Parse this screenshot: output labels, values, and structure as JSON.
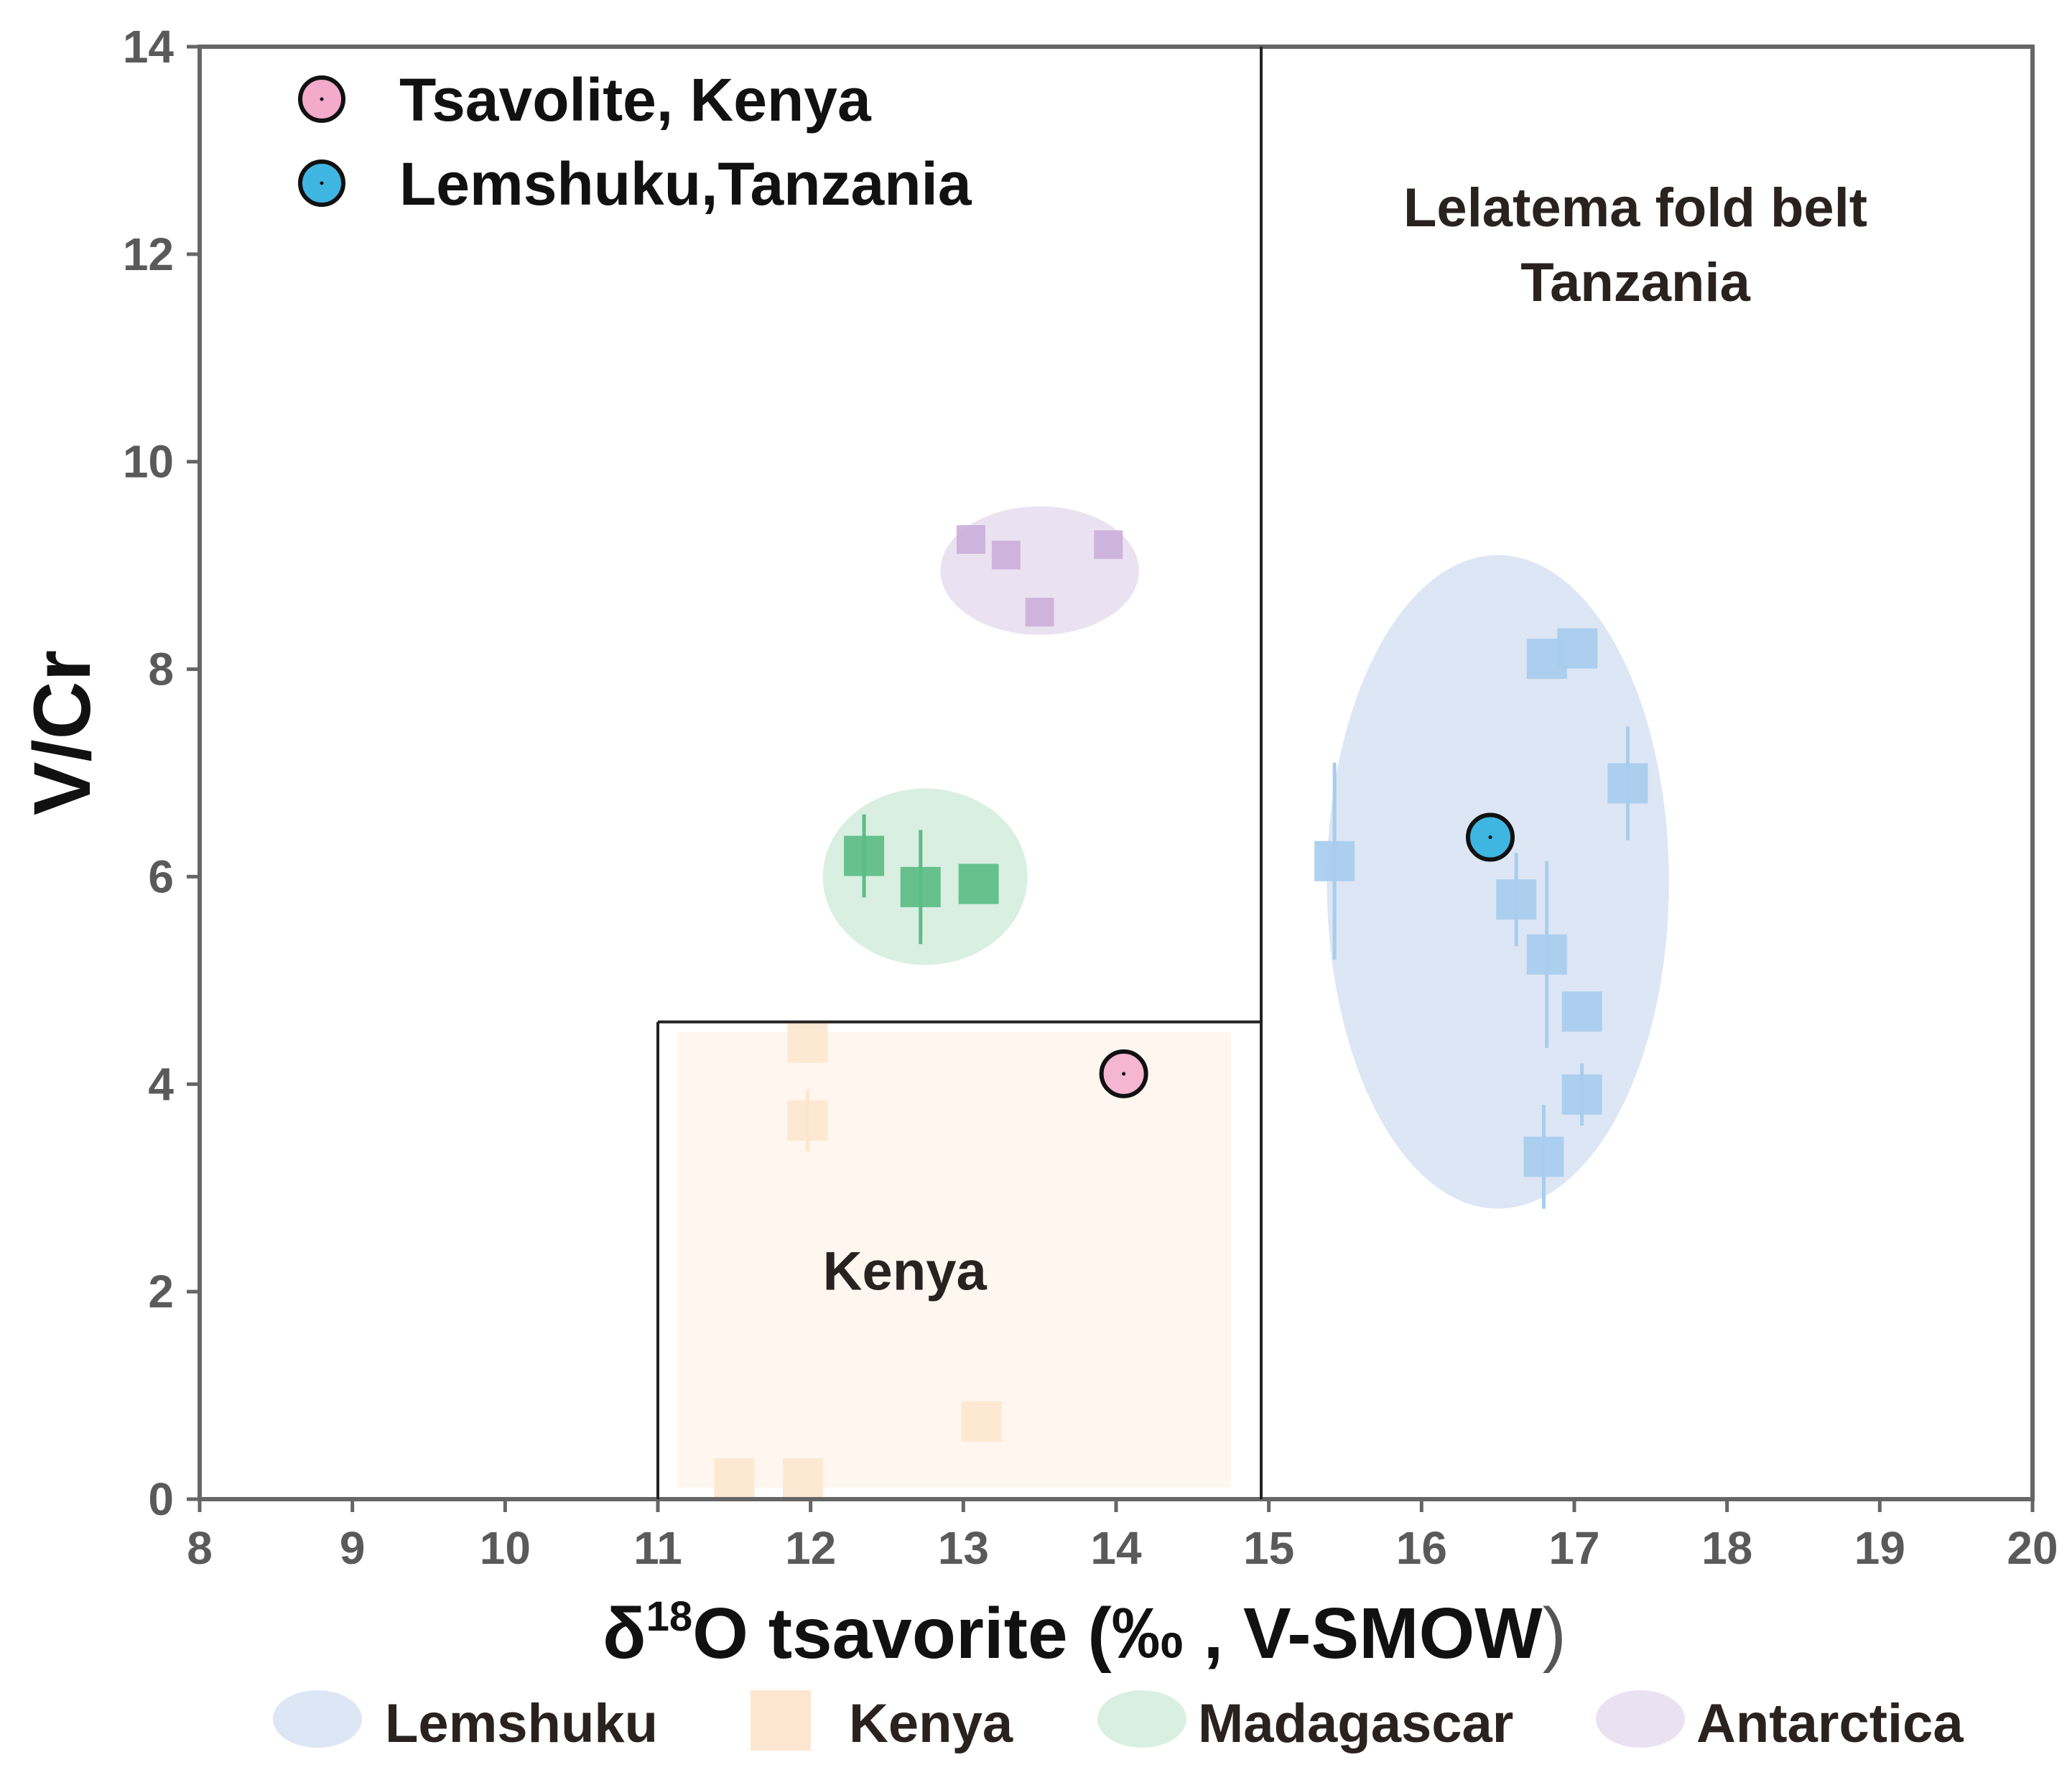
{
  "chart_data": {
    "type": "scatter",
    "xlabel": {
      "delta": "δ",
      "sup": "18",
      "rest": "O tsavorite (‰ , V-SMOW",
      "paren": ")"
    },
    "ylabel": "V/Cr",
    "xlim": [
      8,
      20
    ],
    "ylim": [
      0,
      14
    ],
    "xticks": [
      "8",
      "9",
      "10",
      "11",
      "12",
      "13",
      "14",
      "15",
      "16",
      "17",
      "18",
      "19",
      "20"
    ],
    "yticks": [
      "0",
      "2",
      "4",
      "6",
      "8",
      "10",
      "12",
      "14"
    ],
    "colors": {
      "lemshuku_fill": "#dde6f5",
      "lemshuku_point": "#a8cdee",
      "kenya_fill": "#fff7ef",
      "kenya_point": "#fde6cf",
      "madagascar_fill": "#d9efe2",
      "madagascar_point": "#5cbd86",
      "antarctica_fill": "#ebe2f1",
      "antarctica_point": "#cbb0db",
      "tsavolite": "#f3aacb",
      "lemshuku_highlight": "#3fb6e2"
    },
    "regions": [
      {
        "name": "Kenya box",
        "x": [
          11,
          14.95
        ],
        "y": [
          0,
          4.6
        ],
        "label": "Kenya",
        "label_pos": [
          12.08,
          2.2
        ]
      },
      {
        "name": "Lelatema divider",
        "x": 14.95,
        "label_lines": [
          "Lelatema fold belt",
          "Tanzania"
        ],
        "label_pos": [
          17.4,
          12.45
        ]
      }
    ],
    "groups": [
      {
        "name": "Antarctica",
        "ellipse": {
          "cx": 13.5,
          "cy": 8.95,
          "rx": 0.65,
          "ry": 0.62
        },
        "points": [
          {
            "x": 13.05,
            "y": 9.25
          },
          {
            "x": 13.28,
            "y": 9.1
          },
          {
            "x": 13.5,
            "y": 8.55
          },
          {
            "x": 13.95,
            "y": 9.2
          }
        ]
      },
      {
        "name": "Madagascar",
        "ellipse": {
          "cx": 12.75,
          "cy": 6.0,
          "rx": 0.67,
          "ry": 0.85
        },
        "points": [
          {
            "x": 12.35,
            "y": 6.2,
            "yerr": 0.4
          },
          {
            "x": 12.72,
            "y": 5.9,
            "yerr": 0.55
          },
          {
            "x": 13.1,
            "y": 5.93
          }
        ]
      },
      {
        "name": "Kenya",
        "points": [
          {
            "x": 11.5,
            "y": 0.2
          },
          {
            "x": 11.95,
            "y": 0.2
          },
          {
            "x": 11.98,
            "y": 4.4
          },
          {
            "x": 11.98,
            "y": 3.65,
            "yerr": 0.3
          },
          {
            "x": 13.12,
            "y": 0.75
          }
        ]
      },
      {
        "name": "Lemshuku",
        "ellipse": {
          "cx": 16.5,
          "cy": 5.95,
          "rx": 1.12,
          "ry": 3.15
        },
        "points": [
          {
            "x": 15.43,
            "y": 6.15,
            "yerr": 0.95
          },
          {
            "x": 16.62,
            "y": 5.78,
            "yerr": 0.45
          },
          {
            "x": 16.82,
            "y": 8.1
          },
          {
            "x": 17.02,
            "y": 8.2
          },
          {
            "x": 17.35,
            "y": 6.9,
            "yerr": 0.55
          },
          {
            "x": 16.82,
            "y": 5.25,
            "yerr": 0.9
          },
          {
            "x": 17.05,
            "y": 4.7
          },
          {
            "x": 17.05,
            "y": 3.9,
            "yerr": 0.3
          },
          {
            "x": 16.8,
            "y": 3.3,
            "yerr": 0.5
          }
        ]
      }
    ],
    "highlights": [
      {
        "name": "Tsavolite, Kenya",
        "x": 14.05,
        "y": 4.1
      },
      {
        "name": "Lemshuku,Tanzania",
        "x": 16.45,
        "y": 6.38
      }
    ],
    "legend": [
      "Tsavolite, Kenya",
      "Lemshuku,Tanzania"
    ],
    "bottom_legend": [
      "Lemshuku",
      "Kenya",
      "Madagascar",
      "Antarctica"
    ]
  }
}
